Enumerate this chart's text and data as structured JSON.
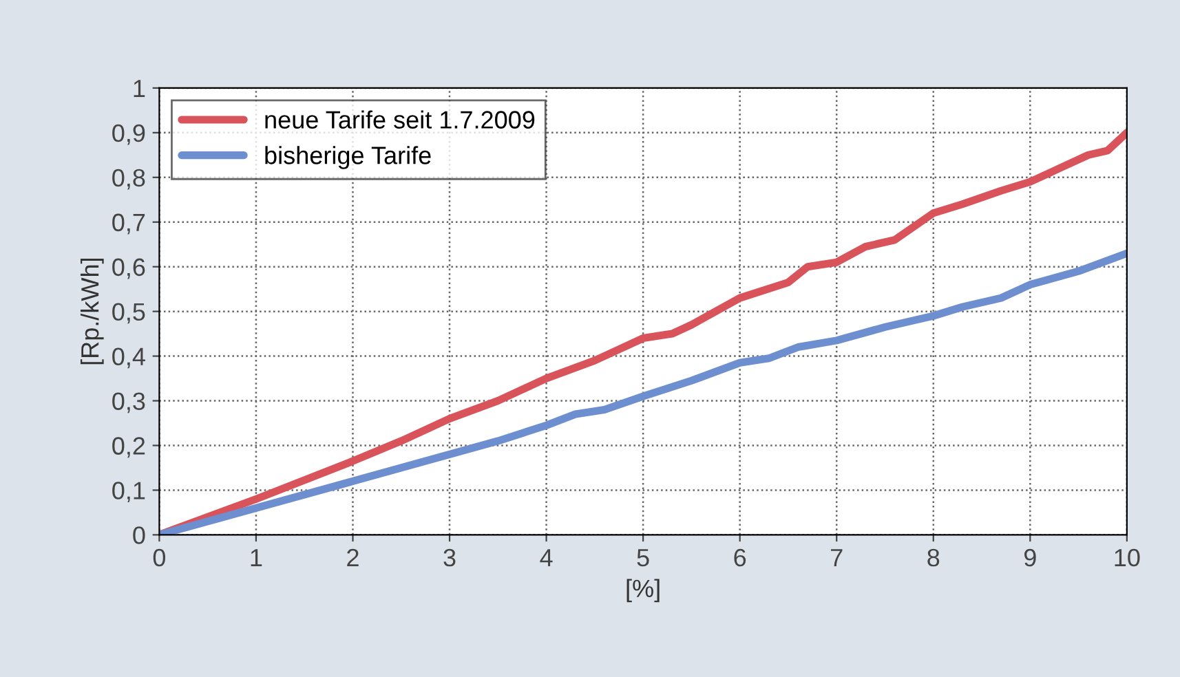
{
  "chart_data": {
    "type": "line",
    "xlabel": "[%]",
    "ylabel": "[Rp./kWh]",
    "xlim": [
      0,
      10
    ],
    "xticks": [
      0,
      1,
      2,
      3,
      4,
      5,
      6,
      7,
      8,
      9,
      10
    ],
    "ylim": [
      0,
      1
    ],
    "yticks": [
      0,
      {
        "value": 0.1,
        "label": "0,1"
      },
      {
        "value": 0.2,
        "label": "0,2"
      },
      {
        "value": 0.3,
        "label": "0,3"
      },
      {
        "value": 0.4,
        "label": "0,4"
      },
      {
        "value": 0.5,
        "label": "0,5"
      },
      {
        "value": 0.6,
        "label": "0,6"
      },
      {
        "value": 0.7,
        "label": "0,7"
      },
      {
        "value": 0.8,
        "label": "0,8"
      },
      {
        "value": 0.9,
        "label": "0,9"
      },
      1
    ],
    "grid": true,
    "legend": "top left",
    "line_style": "solid",
    "series": [
      {
        "name": "neue Tarife seit 1.7.2009",
        "color": "#d9545a",
        "x": [
          0,
          1,
          2,
          2.5,
          3,
          3.5,
          4,
          4.5,
          5,
          5.3,
          5.5,
          6,
          6.5,
          6.7,
          7,
          7.3,
          7.6,
          8,
          8.3,
          8.7,
          9,
          9.3,
          9.6,
          9.8,
          10
        ],
        "values": [
          0,
          0.08,
          0.165,
          0.21,
          0.26,
          0.3,
          0.35,
          0.39,
          0.44,
          0.45,
          0.47,
          0.53,
          0.565,
          0.6,
          0.61,
          0.645,
          0.66,
          0.72,
          0.74,
          0.77,
          0.79,
          0.82,
          0.85,
          0.86,
          0.9
        ]
      },
      {
        "name": "bisherige Tarife",
        "color": "#6d8fd0",
        "x": [
          0,
          1,
          2,
          3,
          3.5,
          4,
          4.3,
          4.6,
          5,
          5.5,
          6,
          6.3,
          6.6,
          7,
          7.5,
          8,
          8.3,
          8.7,
          9,
          9.5,
          10
        ],
        "values": [
          0,
          0.06,
          0.12,
          0.18,
          0.21,
          0.245,
          0.27,
          0.28,
          0.31,
          0.345,
          0.385,
          0.395,
          0.42,
          0.435,
          0.465,
          0.49,
          0.51,
          0.53,
          0.56,
          0.59,
          0.63
        ]
      }
    ]
  }
}
